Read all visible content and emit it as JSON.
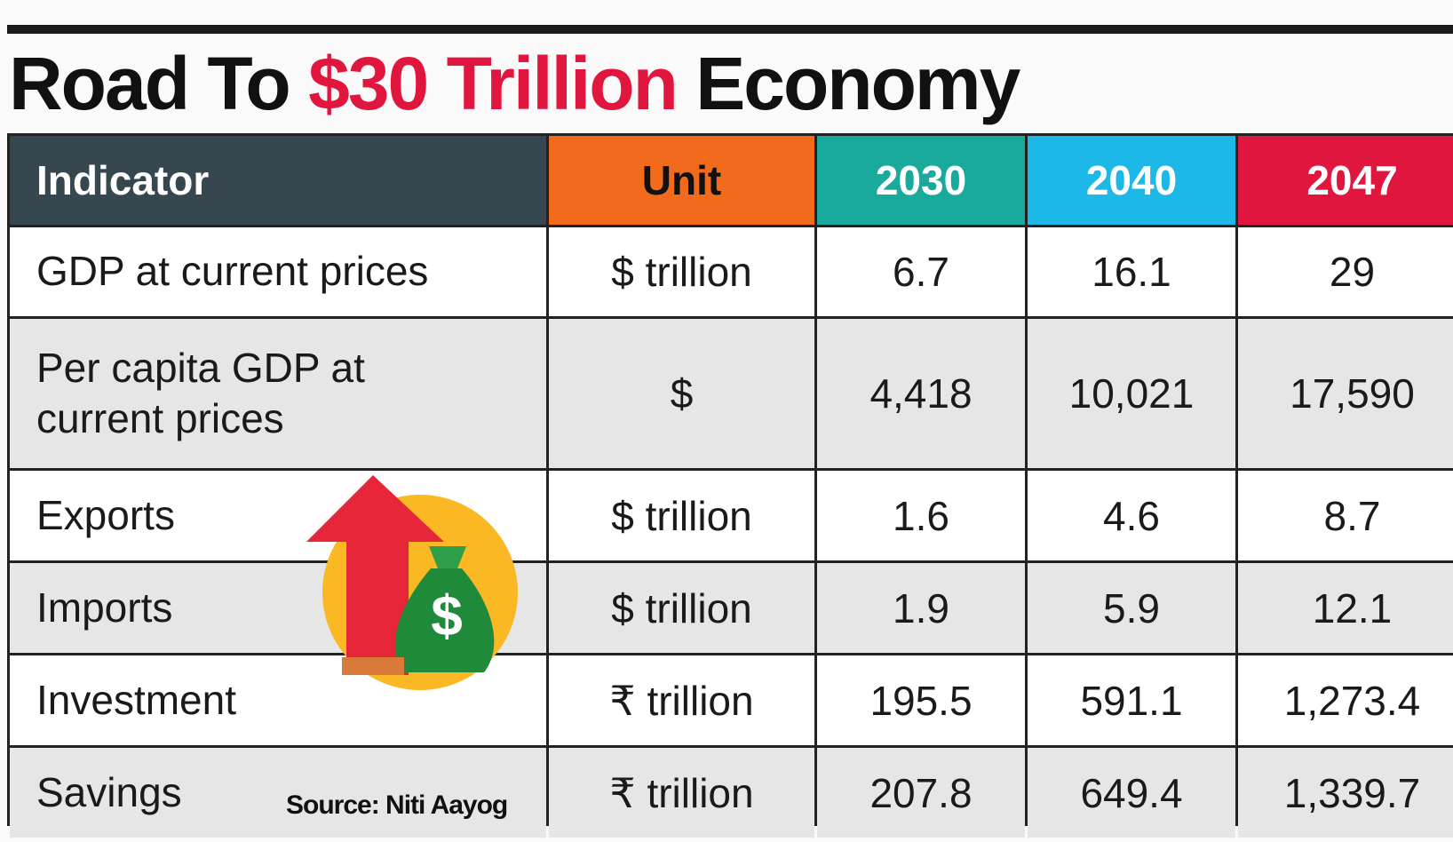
{
  "title": {
    "lead": "Road To",
    "highlight": "$30 Trillion",
    "tail": "Economy"
  },
  "table": {
    "header": [
      "Indicator",
      "Unit",
      "2030",
      "2040",
      "2047"
    ],
    "rows": [
      [
        "GDP at current prices",
        "$ trillion",
        "6.7",
        "16.1",
        "29"
      ],
      [
        "Per capita GDP at current prices",
        "$",
        "4,418",
        "10,021",
        "17,590"
      ],
      [
        "Exports",
        "$ trillion",
        "1.6",
        "4.6",
        "8.7"
      ],
      [
        "Imports",
        "$ trillion",
        "1.9",
        "5.9",
        "12.1"
      ],
      [
        "Investment",
        "₹ trillion",
        "195.5",
        "591.1",
        "1,273.4"
      ],
      [
        "Savings",
        "₹ trillion",
        "207.8",
        "649.4",
        "1,339.7"
      ]
    ]
  },
  "source": "Source: Niti Aayog"
}
